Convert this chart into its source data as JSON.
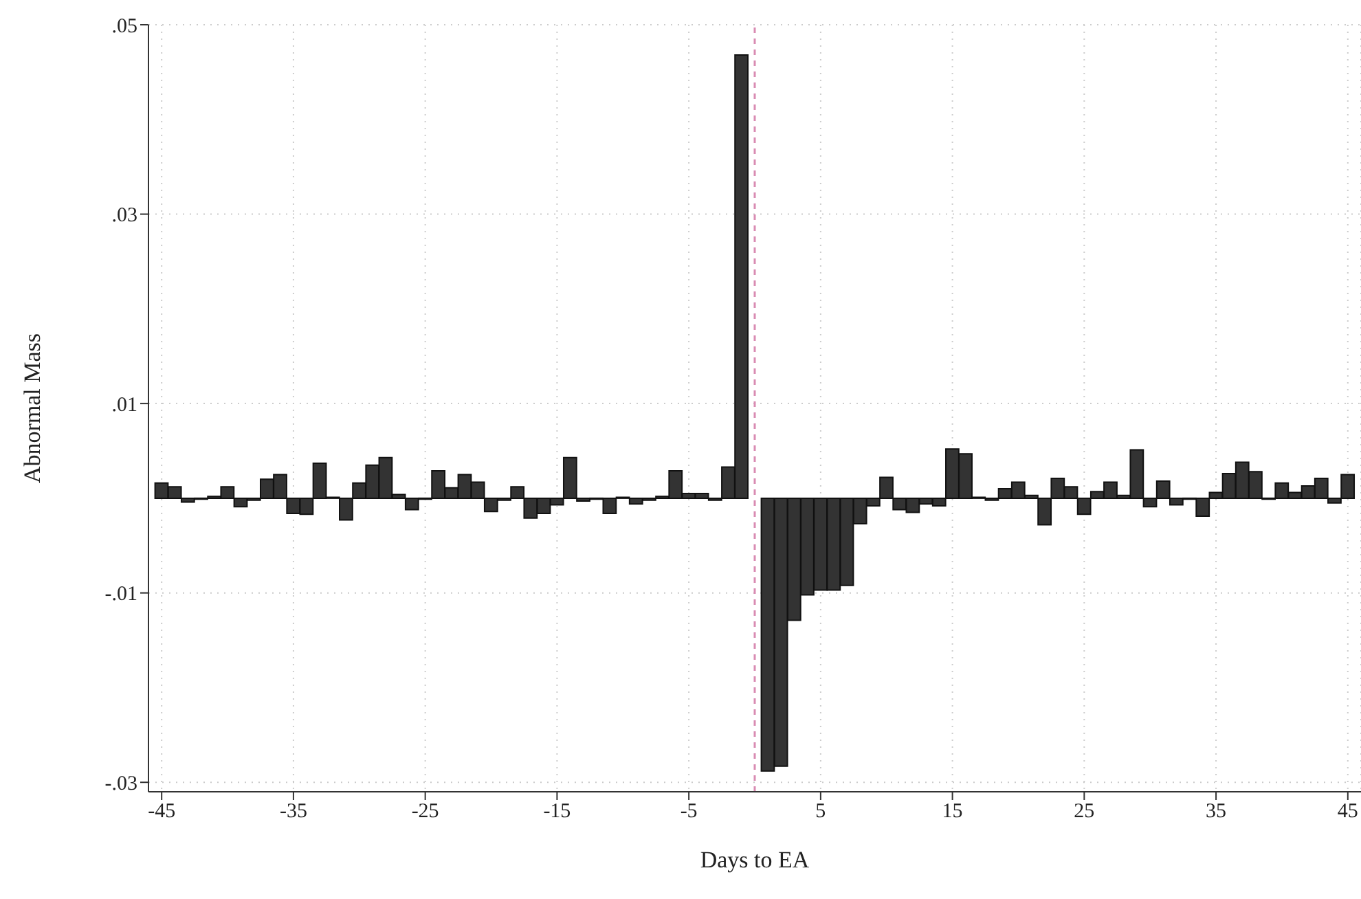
{
  "chart_data": {
    "type": "bar",
    "xlabel": "Days to EA",
    "ylabel": "Abnormal Mass",
    "x": [
      -45,
      -44,
      -43,
      -42,
      -41,
      -40,
      -39,
      -38,
      -37,
      -36,
      -35,
      -34,
      -33,
      -32,
      -31,
      -30,
      -29,
      -28,
      -27,
      -26,
      -25,
      -24,
      -23,
      -22,
      -21,
      -20,
      -19,
      -18,
      -17,
      -16,
      -15,
      -14,
      -13,
      -12,
      -11,
      -10,
      -9,
      -8,
      -7,
      -6,
      -5,
      -4,
      -3,
      -2,
      -1,
      0,
      1,
      2,
      3,
      4,
      5,
      6,
      7,
      8,
      9,
      10,
      11,
      12,
      13,
      14,
      15,
      16,
      17,
      18,
      19,
      20,
      21,
      22,
      23,
      24,
      25,
      26,
      27,
      28,
      29,
      30,
      31,
      32,
      33,
      34,
      35,
      36,
      37,
      38,
      39,
      40,
      41,
      42,
      43,
      44,
      45
    ],
    "values": [
      0.0016,
      0.0012,
      -0.0004,
      -0.0001,
      0.0002,
      0.0012,
      -0.0009,
      -0.0002,
      0.002,
      0.0025,
      -0.0016,
      -0.0017,
      0.0037,
      0.0001,
      -0.0023,
      0.0016,
      0.0035,
      0.0043,
      0.0004,
      -0.0012,
      -0.0001,
      0.0029,
      0.0011,
      0.0025,
      0.0017,
      -0.0014,
      -0.0002,
      0.0012,
      -0.0021,
      -0.0016,
      -0.0007,
      0.0043,
      -0.0003,
      -0.0001,
      -0.0016,
      0.0001,
      -0.0006,
      -0.0002,
      0.0002,
      0.0029,
      0.0005,
      0.0005,
      -0.0002,
      0.0033,
      0.0468,
      null,
      -0.0288,
      -0.0283,
      -0.0129,
      -0.0102,
      -0.0097,
      -0.0097,
      -0.0092,
      -0.0027,
      -0.0008,
      0.0022,
      -0.0012,
      -0.0015,
      -0.0006,
      -0.0008,
      0.0052,
      0.0047,
      0.0001,
      -0.0002,
      0.001,
      0.0017,
      0.0003,
      -0.0028,
      0.0021,
      0.0012,
      -0.0017,
      0.0007,
      0.0017,
      0.0003,
      0.0051,
      -0.0009,
      0.0018,
      -0.0007,
      -0.0001,
      -0.0019,
      0.0006,
      0.0026,
      0.0038,
      0.0028,
      -0.0001,
      0.0016,
      0.0006,
      0.0013,
      0.0021,
      -0.0005,
      0.0025
    ],
    "color": "#333333",
    "xlim": [
      -46,
      46
    ],
    "xticks": [
      -45,
      -35,
      -25,
      -15,
      -5,
      5,
      15,
      25,
      35,
      45
    ],
    "ylim": [
      -0.031,
      0.05
    ],
    "yticks": [
      {
        "value": 0.05,
        "label": ".05"
      },
      {
        "value": 0.03,
        "label": ".03"
      },
      {
        "value": 0.01,
        "label": ".01"
      },
      {
        "value": -0.01,
        "label": "-.01"
      },
      {
        "value": -0.03,
        "label": "-.03"
      }
    ],
    "ref_lines": [
      {
        "axis": "x",
        "value": 0,
        "color": "#d98cb3",
        "line_style": "dashed"
      }
    ],
    "grid": true
  }
}
